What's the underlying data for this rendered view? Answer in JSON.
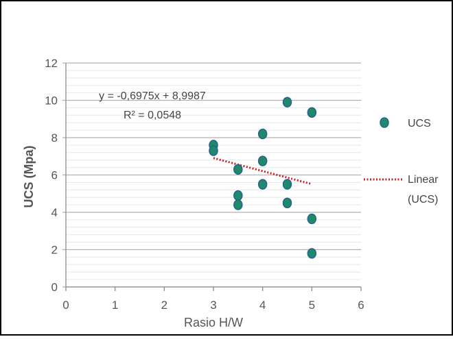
{
  "chart_data": {
    "type": "scatter",
    "xlabel": "Rasio H/W",
    "ylabel": "UCS (Mpa)",
    "xlim": [
      0,
      6
    ],
    "ylim": [
      0,
      12
    ],
    "x_ticks": [
      "0",
      "1",
      "2",
      "3",
      "4",
      "5",
      "6"
    ],
    "y_ticks": [
      "0",
      "2",
      "4",
      "6",
      "8",
      "10",
      "12"
    ],
    "grid": true,
    "legend_position": "right",
    "series": [
      {
        "name": "UCS",
        "color": "#1f8a6a",
        "edge_color": "#2a5f8f",
        "points": [
          {
            "x": 3.0,
            "y": 7.6
          },
          {
            "x": 3.0,
            "y": 7.3
          },
          {
            "x": 3.5,
            "y": 6.3
          },
          {
            "x": 3.5,
            "y": 4.9
          },
          {
            "x": 3.5,
            "y": 4.4
          },
          {
            "x": 4.0,
            "y": 8.2
          },
          {
            "x": 4.0,
            "y": 6.75
          },
          {
            "x": 4.0,
            "y": 5.5
          },
          {
            "x": 4.5,
            "y": 9.9
          },
          {
            "x": 4.5,
            "y": 5.5
          },
          {
            "x": 4.5,
            "y": 4.5
          },
          {
            "x": 5.0,
            "y": 9.35
          },
          {
            "x": 5.0,
            "y": 3.65
          },
          {
            "x": 5.0,
            "y": 1.8
          }
        ]
      }
    ],
    "trendline": {
      "name": "Linear (UCS)",
      "name_lines": [
        "Linear",
        "(UCS)"
      ],
      "type": "linear",
      "slope": -0.6975,
      "intercept": 8.9987,
      "x_range": [
        3,
        5
      ],
      "color": "#cc1f1f",
      "equation": "y = -0,6975x + 8,9987",
      "r_squared": "R² = 0,0548"
    }
  }
}
